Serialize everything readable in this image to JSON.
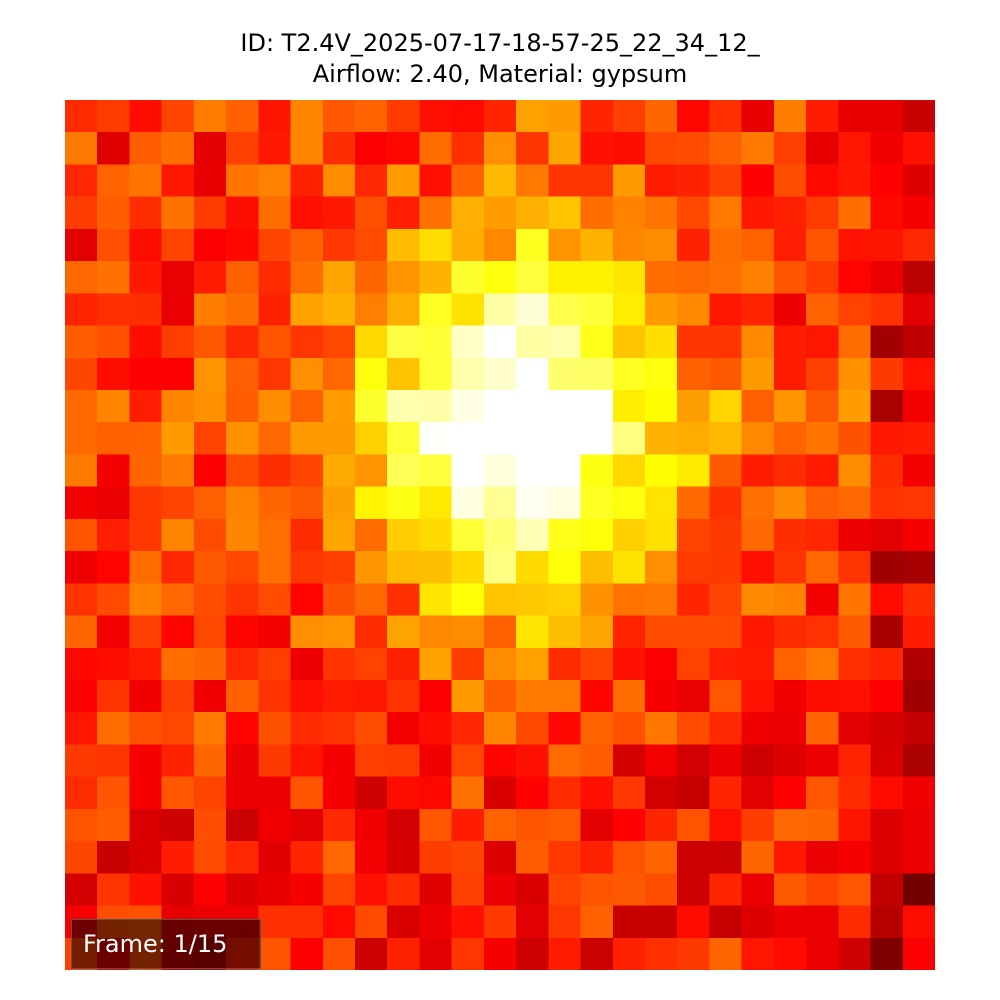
{
  "chart_data": {
    "type": "heatmap",
    "title": "ID: T2.4V_2025-07-17-18-57-25_22_34_12_",
    "subtitle": "Airflow: 2.40, Material: gypsum",
    "frame_label": "Frame: 1/15",
    "colormap": "hot",
    "vmin": 0,
    "vmax": 1,
    "rows": 27,
    "cols": 27,
    "grid": false,
    "axes": "off"
  }
}
